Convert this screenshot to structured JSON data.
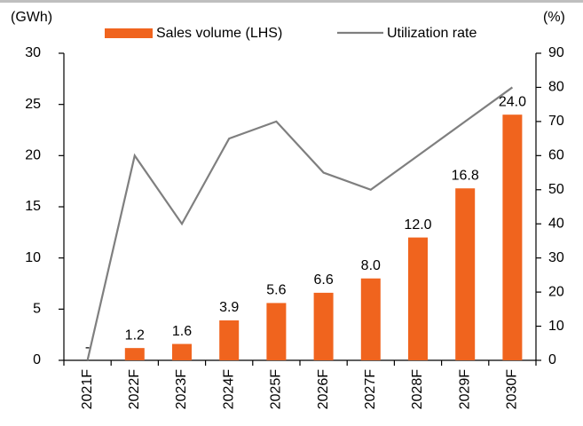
{
  "chart_data": {
    "type": "bar_line",
    "y_label": "(GWh)",
    "y2_label": "(%)",
    "categories": [
      "2021F",
      "2022F",
      "2023F",
      "2024F",
      "2025F",
      "2026F",
      "2027F",
      "2028F",
      "2029F",
      "2030F"
    ],
    "series": [
      {
        "name": "Sales volume (LHS)",
        "type": "bar",
        "color": "#f0641e",
        "values": [
          0,
          1.2,
          1.6,
          3.9,
          5.6,
          6.6,
          8.0,
          12.0,
          16.8,
          24.0
        ],
        "value_labels": [
          "-",
          "1.2",
          "1.6",
          "3.9",
          "5.6",
          "6.6",
          "8.0",
          "12.0",
          "16.8",
          "24.0"
        ]
      },
      {
        "name": "Utilization rate",
        "type": "line",
        "color": "#7f7f7f",
        "axis": "y2",
        "values": [
          0,
          60,
          40,
          65,
          70,
          55,
          50,
          60,
          70,
          80
        ]
      }
    ],
    "ylim": [
      0,
      30
    ],
    "yticks": [
      0,
      5,
      10,
      15,
      20,
      25,
      30
    ],
    "y2lim": [
      0,
      90
    ],
    "y2ticks": [
      0,
      10,
      20,
      30,
      40,
      50,
      60,
      70,
      80,
      90
    ]
  }
}
